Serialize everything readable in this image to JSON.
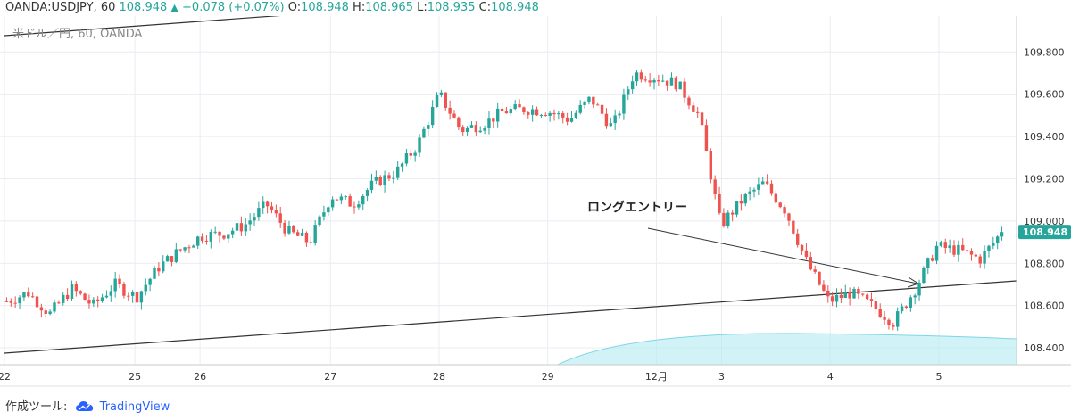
{
  "header": {
    "symbol": "OANDA:USDJPY, 60",
    "last": "108.948",
    "change": "+0.078 (+0.07%)",
    "o_label": "O:",
    "o": "108.948",
    "h_label": "H:",
    "h": "108.965",
    "l_label": "L:",
    "l": "108.935",
    "c_label": "C:",
    "c": "108.948"
  },
  "subtitle": "米ドル／円, 60, OANDA",
  "footer": {
    "prefix": "作成ツール:",
    "brand": "TradingView"
  },
  "colors": {
    "up": "#26a69a",
    "down": "#ef5350",
    "grid": "#e9ecf1",
    "axis": "#333333",
    "lastbg": "#26a69a",
    "cloud": "#b2ebf2"
  },
  "chart_data": {
    "type": "candlestick",
    "ylim": [
      108.32,
      109.97
    ],
    "y_ticks": [
      "109.800",
      "109.600",
      "109.400",
      "109.200",
      "109.000",
      "108.800",
      "108.600",
      "108.400"
    ],
    "x_ticks": [
      "22",
      "25",
      "26",
      "27",
      "28",
      "29",
      "12月",
      "3",
      "4",
      "5"
    ],
    "last_price_label": "108.948",
    "last_price": 108.948,
    "annotation": "ロングエントリー",
    "anchors": [
      {
        "label": "22",
        "value": 108.62
      },
      {
        "label": "",
        "value": 108.66
      },
      {
        "label": "",
        "value": 108.56
      },
      {
        "label": "",
        "value": 108.68
      },
      {
        "label": "",
        "value": 108.6
      },
      {
        "label": "",
        "value": 108.7
      },
      {
        "label": "25",
        "value": 108.64
      },
      {
        "label": "",
        "value": 108.78
      },
      {
        "label": "",
        "value": 108.86
      },
      {
        "label": "26",
        "value": 108.93
      },
      {
        "label": "",
        "value": 108.94
      },
      {
        "label": "",
        "value": 108.98
      },
      {
        "label": "",
        "value": 109.08
      },
      {
        "label": "",
        "value": 108.95
      },
      {
        "label": "",
        "value": 108.9
      },
      {
        "label": "27",
        "value": 109.12
      },
      {
        "label": "",
        "value": 109.08
      },
      {
        "label": "",
        "value": 109.18
      },
      {
        "label": "",
        "value": 109.23
      },
      {
        "label": "",
        "value": 109.36
      },
      {
        "label": "28",
        "value": 109.6
      },
      {
        "label": "",
        "value": 109.43
      },
      {
        "label": "",
        "value": 109.46
      },
      {
        "label": "",
        "value": 109.52
      },
      {
        "label": "",
        "value": 109.53
      },
      {
        "label": "29",
        "value": 109.52
      },
      {
        "label": "",
        "value": 109.48
      },
      {
        "label": "",
        "value": 109.58
      },
      {
        "label": "",
        "value": 109.44
      },
      {
        "label": "",
        "value": 109.7
      },
      {
        "label": "12月",
        "value": 109.68
      },
      {
        "label": "",
        "value": 109.65
      },
      {
        "label": "",
        "value": 109.5
      },
      {
        "label": "3",
        "value": 108.98
      },
      {
        "label": "",
        "value": 109.1
      },
      {
        "label": "",
        "value": 109.18
      },
      {
        "label": "",
        "value": 109.05
      },
      {
        "label": "",
        "value": 108.8
      },
      {
        "label": "4",
        "value": 108.62
      },
      {
        "label": "",
        "value": 108.66
      },
      {
        "label": "",
        "value": 108.6
      },
      {
        "label": "",
        "value": 108.52
      },
      {
        "label": "",
        "value": 108.68
      },
      {
        "label": "5",
        "value": 108.88
      },
      {
        "label": "",
        "value": 108.86
      },
      {
        "label": "",
        "value": 108.82
      },
      {
        "label": "",
        "value": 108.948
      }
    ]
  }
}
